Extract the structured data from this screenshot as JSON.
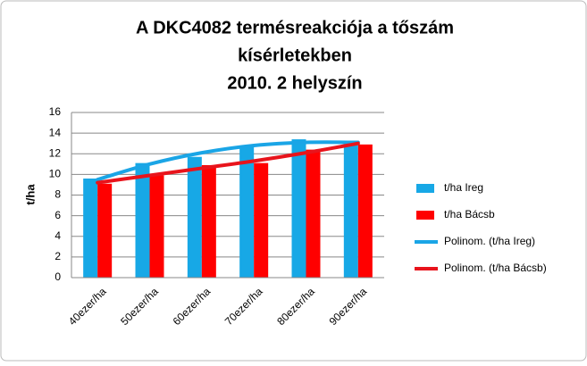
{
  "chart_data": {
    "type": "bar",
    "title": [
      "A DKC4082 termésreakciója a tőszám",
      "kísérletekben",
      "2010.   2 helyszín"
    ],
    "y_label": "t/ha",
    "categories": [
      "40ezer/ha",
      "50ezer/ha",
      "60ezer/ha",
      "70ezer/ha",
      "80ezer/ha",
      "90ezer/ha"
    ],
    "series": [
      {
        "name": "t/ha Ireg",
        "type": "bar",
        "color": "#17a8e6",
        "values": [
          9.6,
          11.1,
          11.7,
          12.8,
          13.4,
          13.0
        ]
      },
      {
        "name": "t/ha Bácsb",
        "type": "bar",
        "color": "#ff0000",
        "values": [
          9.1,
          9.9,
          10.9,
          11.1,
          12.4,
          12.9
        ]
      },
      {
        "name": "Polinom. (t/ha Ireg)",
        "type": "line",
        "color": "#1aa5e6",
        "values": [
          9.5,
          11.0,
          12.1,
          12.8,
          13.1,
          13.1
        ]
      },
      {
        "name": "Polinom. (t/ha Bácsb)",
        "type": "line",
        "color": "#e8141c",
        "values": [
          9.2,
          9.9,
          10.6,
          11.3,
          12.1,
          13.0
        ]
      }
    ],
    "ylim": [
      0,
      16
    ],
    "yticks": [
      0,
      2,
      4,
      6,
      8,
      10,
      12,
      14,
      16
    ],
    "grid": true,
    "legend": "right"
  }
}
